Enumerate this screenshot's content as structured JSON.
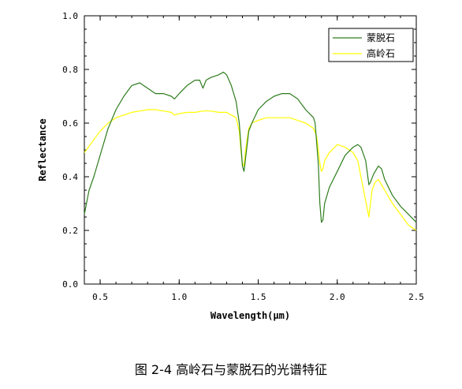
{
  "caption": "图 2-4  高岭石与蒙脱石的光谱特征",
  "chart_data": {
    "type": "line",
    "title": "",
    "xlabel": "Wavelength(μm)",
    "ylabel": "Reflectance",
    "xlim": [
      0.4,
      2.5
    ],
    "ylim": [
      0.0,
      1.0
    ],
    "xticks": [
      0.5,
      1.0,
      1.5,
      2.0,
      2.5
    ],
    "xtick_labels": [
      "0.5",
      "1.0",
      "1.5",
      "2.0",
      "2.5"
    ],
    "yticks": [
      0.0,
      0.2,
      0.4,
      0.6,
      0.8,
      1.0
    ],
    "ytick_labels": [
      "0.0",
      "0.2",
      "0.4",
      "0.6",
      "0.8",
      "1.0"
    ],
    "grid": false,
    "legend_position": "top-right",
    "series": [
      {
        "name": "蒙脱石",
        "color": "#2e7d1e",
        "x": [
          0.4,
          0.43,
          0.46,
          0.5,
          0.55,
          0.6,
          0.65,
          0.7,
          0.75,
          0.8,
          0.85,
          0.9,
          0.95,
          0.97,
          1.0,
          1.05,
          1.1,
          1.13,
          1.15,
          1.17,
          1.2,
          1.25,
          1.28,
          1.3,
          1.33,
          1.36,
          1.38,
          1.39,
          1.4,
          1.41,
          1.42,
          1.44,
          1.46,
          1.5,
          1.55,
          1.6,
          1.65,
          1.7,
          1.75,
          1.8,
          1.85,
          1.86,
          1.88,
          1.89,
          1.9,
          1.91,
          1.92,
          1.95,
          2.0,
          2.05,
          2.1,
          2.13,
          2.15,
          2.18,
          2.2,
          2.21,
          2.23,
          2.26,
          2.28,
          2.3,
          2.35,
          2.4,
          2.45,
          2.5
        ],
        "y": [
          0.26,
          0.35,
          0.4,
          0.48,
          0.58,
          0.65,
          0.7,
          0.74,
          0.75,
          0.73,
          0.71,
          0.71,
          0.7,
          0.69,
          0.71,
          0.74,
          0.76,
          0.76,
          0.73,
          0.76,
          0.77,
          0.78,
          0.79,
          0.78,
          0.74,
          0.68,
          0.6,
          0.52,
          0.44,
          0.42,
          0.47,
          0.57,
          0.6,
          0.65,
          0.68,
          0.7,
          0.71,
          0.71,
          0.69,
          0.65,
          0.62,
          0.6,
          0.45,
          0.3,
          0.23,
          0.24,
          0.3,
          0.36,
          0.42,
          0.48,
          0.51,
          0.52,
          0.51,
          0.46,
          0.37,
          0.38,
          0.41,
          0.44,
          0.43,
          0.39,
          0.33,
          0.29,
          0.26,
          0.23
        ]
      },
      {
        "name": "高岭石",
        "color": "#ffff00",
        "x": [
          0.4,
          0.45,
          0.5,
          0.55,
          0.6,
          0.65,
          0.7,
          0.75,
          0.8,
          0.85,
          0.9,
          0.95,
          0.97,
          1.0,
          1.05,
          1.1,
          1.15,
          1.2,
          1.25,
          1.3,
          1.33,
          1.36,
          1.38,
          1.39,
          1.4,
          1.41,
          1.42,
          1.44,
          1.46,
          1.5,
          1.55,
          1.6,
          1.65,
          1.7,
          1.75,
          1.8,
          1.85,
          1.87,
          1.89,
          1.9,
          1.91,
          1.92,
          1.95,
          2.0,
          2.05,
          2.1,
          2.13,
          2.15,
          2.17,
          2.19,
          2.2,
          2.21,
          2.22,
          2.24,
          2.26,
          2.28,
          2.3,
          2.35,
          2.4,
          2.45,
          2.5
        ],
        "y": [
          0.49,
          0.53,
          0.57,
          0.6,
          0.62,
          0.63,
          0.64,
          0.645,
          0.65,
          0.65,
          0.645,
          0.64,
          0.63,
          0.635,
          0.64,
          0.64,
          0.645,
          0.645,
          0.64,
          0.64,
          0.63,
          0.62,
          0.57,
          0.5,
          0.45,
          0.44,
          0.5,
          0.58,
          0.6,
          0.61,
          0.62,
          0.62,
          0.62,
          0.62,
          0.61,
          0.6,
          0.58,
          0.55,
          0.45,
          0.42,
          0.43,
          0.46,
          0.49,
          0.52,
          0.51,
          0.49,
          0.46,
          0.4,
          0.34,
          0.28,
          0.25,
          0.3,
          0.35,
          0.38,
          0.39,
          0.37,
          0.35,
          0.3,
          0.26,
          0.22,
          0.2
        ]
      }
    ]
  }
}
